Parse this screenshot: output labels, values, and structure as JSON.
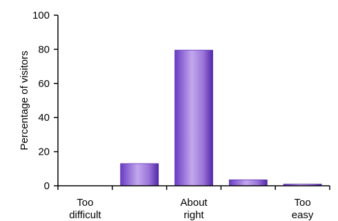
{
  "chart_data": {
    "type": "bar",
    "categories": [
      "Too difficult",
      "",
      "About right",
      "",
      "Too easy"
    ],
    "category_labels": [
      [
        "Too",
        "difficult"
      ],
      [],
      [
        "About",
        "right"
      ],
      [],
      [
        "Too",
        "easy"
      ]
    ],
    "values": [
      0,
      13,
      79.5,
      3.5,
      1
    ],
    "title": "",
    "xlabel": "",
    "ylabel": "Percentage of visitors",
    "ylim": [
      0,
      100
    ],
    "yticks": [
      "0",
      "20",
      "40",
      "60",
      "80",
      "100"
    ],
    "grid": false,
    "legend": "none",
    "colors": {
      "bar_dark": "#5a2fb0",
      "bar_light": "#b89be6",
      "axis": "#000000"
    }
  }
}
